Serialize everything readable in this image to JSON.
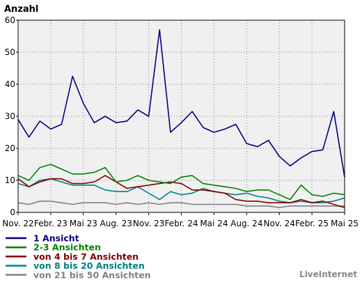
{
  "chart_data": {
    "type": "line",
    "ylabel": "Anzahl",
    "ylim": [
      0,
      60
    ],
    "yticks": [
      0,
      10,
      20,
      30,
      40,
      50,
      60
    ],
    "grid": true,
    "legend_position": "bottom-left",
    "credit": "LiveInternet",
    "xtick_labels": [
      "Nov. 22",
      "Febr. 23",
      "Mai 23",
      "Aug. 23",
      "Nov. 23",
      "Febr. 24",
      "Mai 24",
      "Aug. 24",
      "Nov. 24",
      "Febr. 25",
      "Mai 25"
    ],
    "series": [
      {
        "name": "1 Ansicht",
        "color": "#000080",
        "values": [
          29,
          23.5,
          28.5,
          26,
          27.5,
          42.5,
          34,
          28,
          30,
          28,
          28.5,
          32,
          30,
          57,
          25,
          28,
          31.5,
          26.5,
          25,
          26,
          27.5,
          21.5,
          20.5,
          22.5,
          17.5,
          14.5,
          17,
          19,
          19.5,
          31.5,
          11
        ]
      },
      {
        "name": "2-3 Ansichten",
        "color": "#008000",
        "values": [
          11.5,
          10,
          14,
          15,
          13.5,
          12,
          12,
          12.5,
          14,
          9.5,
          10,
          11.5,
          10,
          9.5,
          9,
          11,
          11.5,
          9,
          8.5,
          8,
          7.5,
          6.5,
          7,
          7,
          5.5,
          4,
          8.5,
          5.5,
          5,
          6,
          5.5
        ]
      },
      {
        "name": "von 4 bis 7 Ansichten",
        "color": "#800000",
        "values": [
          10.5,
          8,
          9.5,
          10.5,
          10.5,
          9,
          9,
          9.5,
          11.5,
          9.5,
          7.5,
          8,
          8.5,
          9,
          9.5,
          9,
          7,
          7,
          6.5,
          6,
          4,
          3.5,
          3.5,
          3,
          3,
          3,
          4,
          3,
          3.5,
          2.5,
          1.5
        ]
      },
      {
        "name": "von 8 bis 20 Ansichten",
        "color": "#008080",
        "values": [
          9,
          8,
          10,
          10.5,
          9.5,
          8.5,
          8.5,
          8.5,
          7,
          6.5,
          6.5,
          8,
          6,
          4,
          6.5,
          5.5,
          6,
          7.5,
          6.5,
          6,
          5.5,
          6,
          5,
          4.5,
          3.5,
          3,
          3.5,
          3,
          3,
          3.5,
          4.5
        ]
      },
      {
        "name": "von 21 bis 50 Ansichten",
        "color": "#808080",
        "values": [
          3,
          2.5,
          3.5,
          3.5,
          3,
          2.5,
          3,
          3,
          3,
          2.5,
          3,
          2.5,
          3,
          2.5,
          3,
          3,
          2.5,
          2.5,
          2.5,
          2.5,
          2.5,
          2,
          2,
          2,
          1.5,
          2,
          2,
          2,
          2,
          2,
          2
        ]
      }
    ]
  }
}
